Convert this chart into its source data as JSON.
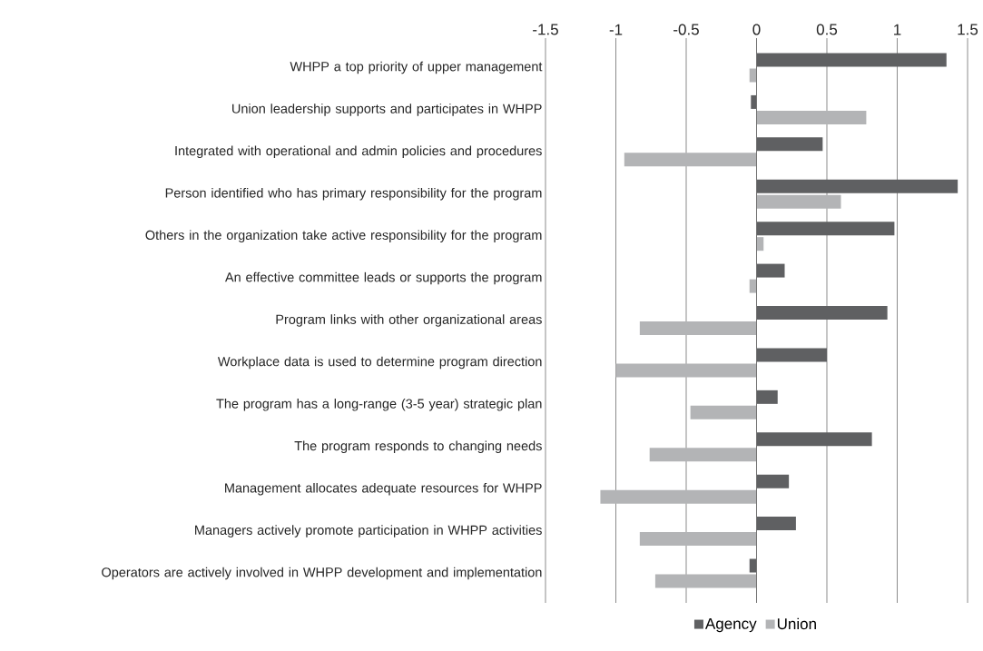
{
  "chart_data": {
    "type": "bar",
    "orientation": "horizontal",
    "categories": [
      "WHPP a top priority of upper management",
      "Union leadership supports and participates in WHPP",
      "Integrated with operational and admin policies and procedures",
      "Person identified who has primary responsibility for the program",
      "Others in the organization take active responsibility for the program",
      "An effective committee leads or supports the program",
      "Program links with other organizational areas",
      "Workplace data is used to determine program direction",
      "The program has a long-range (3-5 year) strategic plan",
      "The program responds to changing needs",
      "Management allocates adequate resources for WHPP",
      "Managers actively promote participation in WHPP activities",
      "Operators are actively involved in WHPP development and implementation"
    ],
    "series": [
      {
        "name": "Agency",
        "color": "#5f6062",
        "values": [
          1.35,
          -0.04,
          0.47,
          1.43,
          0.98,
          0.2,
          0.93,
          0.5,
          0.15,
          0.82,
          0.23,
          0.28,
          -0.05
        ]
      },
      {
        "name": "Union",
        "color": "#b3b4b6",
        "values": [
          -0.05,
          0.78,
          -0.94,
          0.6,
          0.05,
          -0.05,
          -0.83,
          -1.0,
          -0.47,
          -0.76,
          -1.11,
          -0.83,
          -0.72
        ]
      }
    ],
    "xlim": [
      -1.5,
      1.5
    ],
    "xticks": [
      -1.5,
      -1,
      -0.5,
      0,
      0.5,
      1,
      1.5
    ],
    "grid": "x",
    "legend": "bottom"
  }
}
